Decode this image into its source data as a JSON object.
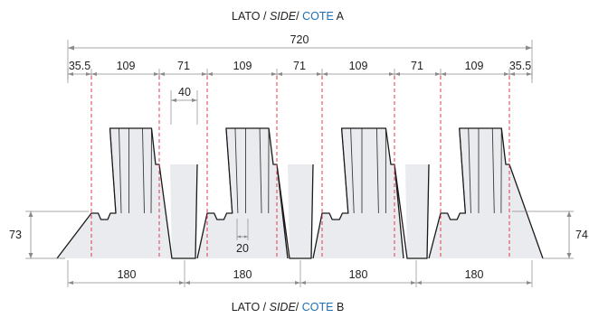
{
  "side_top": {
    "prefix": "LATO / ",
    "italic": "SIDE",
    "sep": "/ ",
    "cote": "COTE",
    "letter": " A"
  },
  "side_bottom": {
    "prefix": "LATO / ",
    "italic": "SIDE",
    "sep": "/ ",
    "cote": "COTE",
    "letter": " B"
  },
  "colors": {
    "dimension": "#8a8a8a",
    "pitch_lines": "#e0293a",
    "cote": "#1f6fb2",
    "profile": "#1a1a1a"
  },
  "dimensions": {
    "total_width": "720",
    "segments": [
      "35.5",
      "109",
      "71",
      "109",
      "71",
      "109",
      "71",
      "109",
      "35.5"
    ],
    "top_flange": "40",
    "groove": "20",
    "height_left": "73",
    "height_right": "74",
    "bottom_pitches": [
      "180",
      "180",
      "180",
      "180"
    ]
  }
}
